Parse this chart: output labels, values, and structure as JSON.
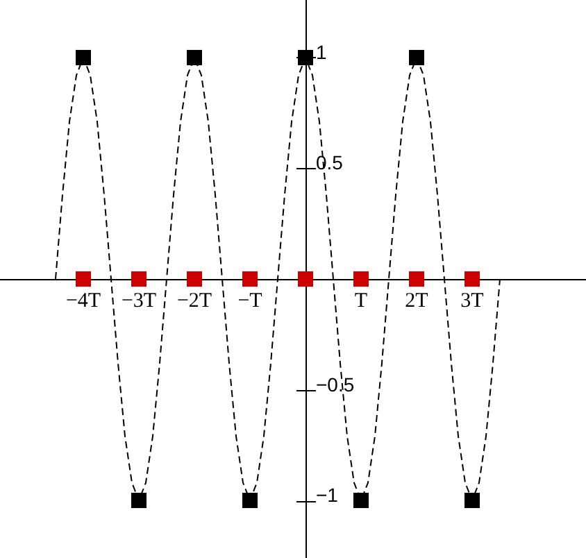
{
  "chart_data": {
    "type": "line",
    "xlim": [
      -5.5,
      5.05
    ],
    "ylim": [
      -1.26,
      1.26
    ],
    "xticks": [
      {
        "value": -4,
        "label": "−4T"
      },
      {
        "value": -3,
        "label": "−3T"
      },
      {
        "value": -2,
        "label": "−2T"
      },
      {
        "value": -1,
        "label": "−T"
      },
      {
        "value": 1,
        "label": "T"
      },
      {
        "value": 2,
        "label": "2T"
      },
      {
        "value": 3,
        "label": "3T"
      }
    ],
    "yticks": [
      {
        "value": -1,
        "label": "−1"
      },
      {
        "value": -0.5,
        "label": "−0.5"
      },
      0.5,
      1
    ],
    "series": [
      {
        "color": "#000000",
        "line_style": "dashed",
        "marker": "none",
        "x": [
          -4.5,
          -4.375,
          -4.25,
          -4.125,
          -4,
          -3.875,
          -3.75,
          -3.625,
          -3.5,
          -3.375,
          -3.25,
          -3.125,
          -3,
          -2.875,
          -2.75,
          -2.625,
          -2.5,
          -2.375,
          -2.25,
          -2.125,
          -2,
          -1.875,
          -1.75,
          -1.625,
          -1.5,
          -1.375,
          -1.25,
          -1.125,
          -1,
          -0.875,
          -0.75,
          -0.625,
          -0.5,
          -0.375,
          -0.25,
          -0.125,
          0,
          0.125,
          0.25,
          0.375,
          0.5,
          0.625,
          0.75,
          0.875,
          1,
          1.125,
          1.25,
          1.375,
          1.5,
          1.625,
          1.75,
          1.875,
          2,
          2.125,
          2.25,
          2.375,
          2.5,
          2.625,
          2.75,
          2.875,
          3,
          3.125,
          3.25,
          3.375,
          3.5
        ],
        "values": [
          0,
          0.38,
          0.71,
          0.92,
          1,
          0.92,
          0.71,
          0.38,
          0,
          -0.38,
          -0.71,
          -0.92,
          -1,
          -0.92,
          -0.71,
          -0.38,
          0,
          0.38,
          0.71,
          0.92,
          1,
          0.92,
          0.71,
          0.38,
          0,
          -0.38,
          -0.71,
          -0.92,
          -1,
          -0.92,
          -0.71,
          -0.38,
          0,
          0.38,
          0.71,
          0.92,
          1,
          0.92,
          0.71,
          0.38,
          0,
          -0.38,
          -0.71,
          -0.92,
          -1,
          -0.92,
          -0.71,
          -0.38,
          0,
          0.38,
          0.71,
          0.92,
          1,
          0.92,
          0.71,
          0.38,
          0,
          -0.38,
          -0.71,
          -0.92,
          -1,
          -0.92,
          -0.71,
          -0.38,
          0
        ]
      },
      {
        "type": "scatter",
        "color": "#000000",
        "marker": "square",
        "x": [
          -4,
          -3,
          -2,
          -1,
          0,
          1,
          2,
          3
        ],
        "values": [
          1,
          -1,
          1,
          -1,
          1,
          -1,
          1,
          -1
        ]
      },
      {
        "type": "scatter",
        "color": "#cc0000",
        "marker": "square",
        "x": [
          -4,
          -3,
          -2,
          -1,
          0,
          1,
          2,
          3
        ],
        "values": [
          0,
          0,
          0,
          0,
          0,
          0,
          0,
          0
        ]
      }
    ]
  }
}
